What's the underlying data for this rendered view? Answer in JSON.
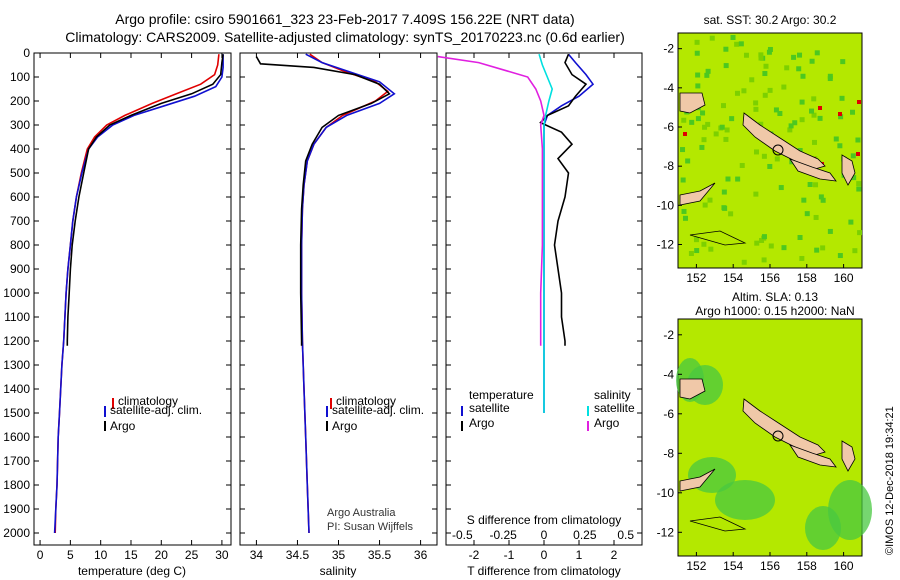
{
  "header": {
    "line1": "Argo profile: csiro 5901661_323 23-Feb-2017 7.409S 156.22E (NRT data)",
    "line2": "Climatology: CARS2009. Satellite-adjusted climatology: synTS_20170223.nc (0.6d earlier)"
  },
  "colors": {
    "climatology": "#e00000",
    "satellite": "#1010d0",
    "argo": "#000000",
    "sat_salinity": "#00e0e0",
    "argo_salinity": "#e020e0",
    "ocean": "#b4e800",
    "land": "#f0c8a8"
  },
  "credits": {
    "org": "Argo Australia",
    "pi": "PI: Susan Wijffels",
    "stamp": "©IMOS 12-Dec-2018 19:34:21"
  },
  "map1": {
    "title": "sat. SST: 30.2 Argo: 30.2",
    "xticks": [
      "152",
      "154",
      "156",
      "158",
      "160"
    ],
    "yticks": [
      "-2",
      "-4",
      "-6",
      "-8",
      "-10",
      "-12"
    ]
  },
  "map2": {
    "title1": "Altim. SLA: 0.13",
    "title2": "Argo h1000: 0.15 h2000: NaN",
    "xticks": [
      "152",
      "154",
      "156",
      "158",
      "160"
    ],
    "yticks": [
      "-2",
      "-4",
      "-6",
      "-8",
      "-10",
      "-12"
    ]
  },
  "chart_data": [
    {
      "type": "line",
      "title": "",
      "xlabel": "temperature (deg C)",
      "ylabel": "",
      "xlim": [
        -1,
        31.5
      ],
      "ylim": [
        2050,
        0
      ],
      "xticks": [
        0,
        5,
        10,
        15,
        20,
        25,
        30
      ],
      "yticks": [
        0,
        100,
        200,
        300,
        400,
        500,
        600,
        700,
        800,
        900,
        1000,
        1100,
        1200,
        1300,
        1400,
        1500,
        1600,
        1700,
        1800,
        1900,
        2000
      ],
      "legend": [
        "climatology",
        "satellite-adj. clim.",
        "Argo"
      ],
      "series": [
        {
          "name": "climatology",
          "color": "#e00000",
          "points": [
            [
              29.5,
              5
            ],
            [
              29.3,
              50
            ],
            [
              28.8,
              90
            ],
            [
              26.5,
              130
            ],
            [
              22.5,
              170
            ],
            [
              18.5,
              210
            ],
            [
              14,
              260
            ],
            [
              11,
              300
            ],
            [
              9,
              350
            ],
            [
              7.8,
              400
            ],
            [
              6.8,
              500
            ],
            [
              6,
              600
            ],
            [
              5.4,
              700
            ],
            [
              5,
              800
            ],
            [
              4.6,
              900
            ],
            [
              4.3,
              1000
            ],
            [
              4.1,
              1100
            ],
            [
              3.9,
              1200
            ],
            [
              3.6,
              1300
            ],
            [
              3.4,
              1400
            ],
            [
              3.2,
              1500
            ],
            [
              3,
              1600
            ],
            [
              2.9,
              1700
            ],
            [
              2.8,
              1800
            ],
            [
              2.6,
              1900
            ],
            [
              2.5,
              2000
            ]
          ]
        },
        {
          "name": "satellite-adj. clim.",
          "color": "#1010d0",
          "points": [
            [
              30.2,
              5
            ],
            [
              30.2,
              60
            ],
            [
              30,
              100
            ],
            [
              29,
              140
            ],
            [
              25.5,
              180
            ],
            [
              20.5,
              220
            ],
            [
              15.5,
              260
            ],
            [
              12,
              300
            ],
            [
              9.5,
              350
            ],
            [
              8,
              400
            ],
            [
              6.9,
              500
            ],
            [
              6,
              600
            ],
            [
              5.4,
              700
            ],
            [
              5,
              800
            ],
            [
              4.6,
              900
            ],
            [
              4.3,
              1000
            ],
            [
              4.1,
              1100
            ],
            [
              3.9,
              1200
            ],
            [
              3.6,
              1300
            ],
            [
              3.4,
              1400
            ],
            [
              3.2,
              1500
            ],
            [
              3,
              1600
            ],
            [
              2.9,
              1700
            ],
            [
              2.8,
              1800
            ],
            [
              2.6,
              1900
            ],
            [
              2.4,
              2000
            ]
          ]
        },
        {
          "name": "Argo",
          "color": "#000000",
          "points": [
            [
              30.2,
              5
            ],
            [
              30,
              40
            ],
            [
              29.8,
              90
            ],
            [
              28.5,
              130
            ],
            [
              25,
              170
            ],
            [
              20,
              210
            ],
            [
              15,
              260
            ],
            [
              11.5,
              300
            ],
            [
              9.3,
              350
            ],
            [
              8,
              400
            ],
            [
              7.2,
              500
            ],
            [
              6.4,
              600
            ],
            [
              5.8,
              700
            ],
            [
              5.3,
              800
            ],
            [
              5,
              900
            ],
            [
              4.8,
              1000
            ],
            [
              4.6,
              1100
            ],
            [
              4.5,
              1200
            ],
            [
              4.5,
              1220
            ]
          ]
        }
      ]
    },
    {
      "type": "line",
      "xlabel": "salinity",
      "xlim": [
        33.8,
        36.2
      ],
      "ylim": [
        2050,
        0
      ],
      "xticks": [
        34,
        34.5,
        35,
        35.5,
        36
      ],
      "legend": [
        "climatology",
        "satellite-adj. clim.",
        "Argo"
      ],
      "series": [
        {
          "name": "climatology",
          "color": "#e00000",
          "points": [
            [
              34.65,
              5
            ],
            [
              34.8,
              40
            ],
            [
              35.1,
              80
            ],
            [
              35.45,
              120
            ],
            [
              35.6,
              160
            ],
            [
              35.45,
              200
            ],
            [
              35.05,
              260
            ],
            [
              34.85,
              310
            ],
            [
              34.7,
              380
            ],
            [
              34.62,
              450
            ],
            [
              34.58,
              550
            ],
            [
              34.56,
              650
            ],
            [
              34.55,
              800
            ],
            [
              34.55,
              1000
            ],
            [
              34.56,
              1200
            ],
            [
              34.58,
              1400
            ],
            [
              34.6,
              1600
            ],
            [
              34.62,
              1800
            ],
            [
              34.64,
              2000
            ]
          ]
        },
        {
          "name": "satellite-adj. clim.",
          "color": "#1010d0",
          "points": [
            [
              34.6,
              5
            ],
            [
              34.8,
              40
            ],
            [
              35.15,
              80
            ],
            [
              35.5,
              120
            ],
            [
              35.68,
              170
            ],
            [
              35.5,
              210
            ],
            [
              35.1,
              260
            ],
            [
              34.85,
              310
            ],
            [
              34.7,
              380
            ],
            [
              34.62,
              450
            ],
            [
              34.58,
              550
            ],
            [
              34.56,
              650
            ],
            [
              34.55,
              800
            ],
            [
              34.55,
              1000
            ],
            [
              34.56,
              1200
            ],
            [
              34.58,
              1400
            ],
            [
              34.6,
              1600
            ],
            [
              34.62,
              1800
            ],
            [
              34.64,
              2000
            ]
          ]
        },
        {
          "name": "Argo",
          "color": "#000000",
          "points": [
            [
              34.0,
              15
            ],
            [
              34.05,
              45
            ],
            [
              34.7,
              60
            ],
            [
              35.2,
              90
            ],
            [
              35.5,
              130
            ],
            [
              35.62,
              170
            ],
            [
              35.4,
              210
            ],
            [
              35.0,
              260
            ],
            [
              34.8,
              310
            ],
            [
              34.68,
              380
            ],
            [
              34.6,
              450
            ],
            [
              34.57,
              550
            ],
            [
              34.55,
              650
            ],
            [
              34.54,
              800
            ],
            [
              34.54,
              1000
            ],
            [
              34.55,
              1200
            ],
            [
              34.55,
              1220
            ]
          ]
        }
      ]
    },
    {
      "type": "line",
      "xlabel": "T difference from climatology",
      "xlabel_top": "S difference from climatology",
      "xlim": [
        -2.8,
        2.8
      ],
      "ylim": [
        2050,
        0
      ],
      "xticks": [
        -2,
        -1,
        0,
        1,
        2
      ],
      "xticks_top": [
        "-0.5",
        "-0.25",
        "0",
        "0.25",
        "0.5"
      ],
      "legend_left": [
        "temperature",
        "satellite",
        "Argo"
      ],
      "legend_right": [
        "salinity",
        "satellite",
        "Argo"
      ],
      "series": [
        {
          "name": "temperature satellite",
          "color": "#1010d0",
          "points": [
            [
              0.7,
              5
            ],
            [
              0.9,
              40
            ],
            [
              1.2,
              90
            ],
            [
              1.4,
              130
            ],
            [
              1.0,
              180
            ],
            [
              0.5,
              220
            ],
            [
              0.1,
              260
            ],
            [
              0,
              300
            ],
            [
              0,
              400
            ],
            [
              0,
              600
            ],
            [
              0,
              1000
            ],
            [
              0,
              1200
            ],
            [
              0,
              1500
            ]
          ]
        },
        {
          "name": "temperature Argo",
          "color": "#000000",
          "points": [
            [
              0.7,
              5
            ],
            [
              0.6,
              40
            ],
            [
              0.8,
              90
            ],
            [
              1.2,
              130
            ],
            [
              0.9,
              180
            ],
            [
              0.7,
              220
            ],
            [
              0.1,
              260
            ],
            [
              -0.1,
              290
            ],
            [
              0.5,
              330
            ],
            [
              0.8,
              380
            ],
            [
              0.4,
              440
            ],
            [
              0.7,
              500
            ],
            [
              0.6,
              600
            ],
            [
              0.4,
              700
            ],
            [
              0.3,
              800
            ],
            [
              0.4,
              900
            ],
            [
              0.5,
              1000
            ],
            [
              0.5,
              1100
            ],
            [
              0.6,
              1200
            ],
            [
              0.6,
              1220
            ]
          ]
        },
        {
          "name": "salinity satellite",
          "color": "#00e0e0",
          "points": [
            [
              -0.03,
              5
            ],
            [
              -0.01,
              50
            ],
            [
              0.02,
              100
            ],
            [
              0.05,
              150
            ],
            [
              0.03,
              200
            ],
            [
              0.01,
              260
            ],
            [
              0,
              300
            ],
            [
              0,
              400
            ],
            [
              0,
              600
            ],
            [
              0,
              1000
            ],
            [
              0,
              1200
            ],
            [
              0,
              1500
            ]
          ]
        },
        {
          "name": "salinity Argo",
          "color": "#e020e0",
          "points": [
            [
              -0.65,
              15
            ],
            [
              -0.4,
              40
            ],
            [
              -0.25,
              70
            ],
            [
              -0.1,
              100
            ],
            [
              -0.05,
              150
            ],
            [
              -0.02,
              200
            ],
            [
              0,
              260
            ],
            [
              -0.02,
              300
            ],
            [
              -0.01,
              400
            ],
            [
              -0.01,
              600
            ],
            [
              -0.01,
              800
            ],
            [
              -0.02,
              1000
            ],
            [
              -0.02,
              1200
            ],
            [
              -0.02,
              1220
            ]
          ]
        }
      ]
    }
  ]
}
